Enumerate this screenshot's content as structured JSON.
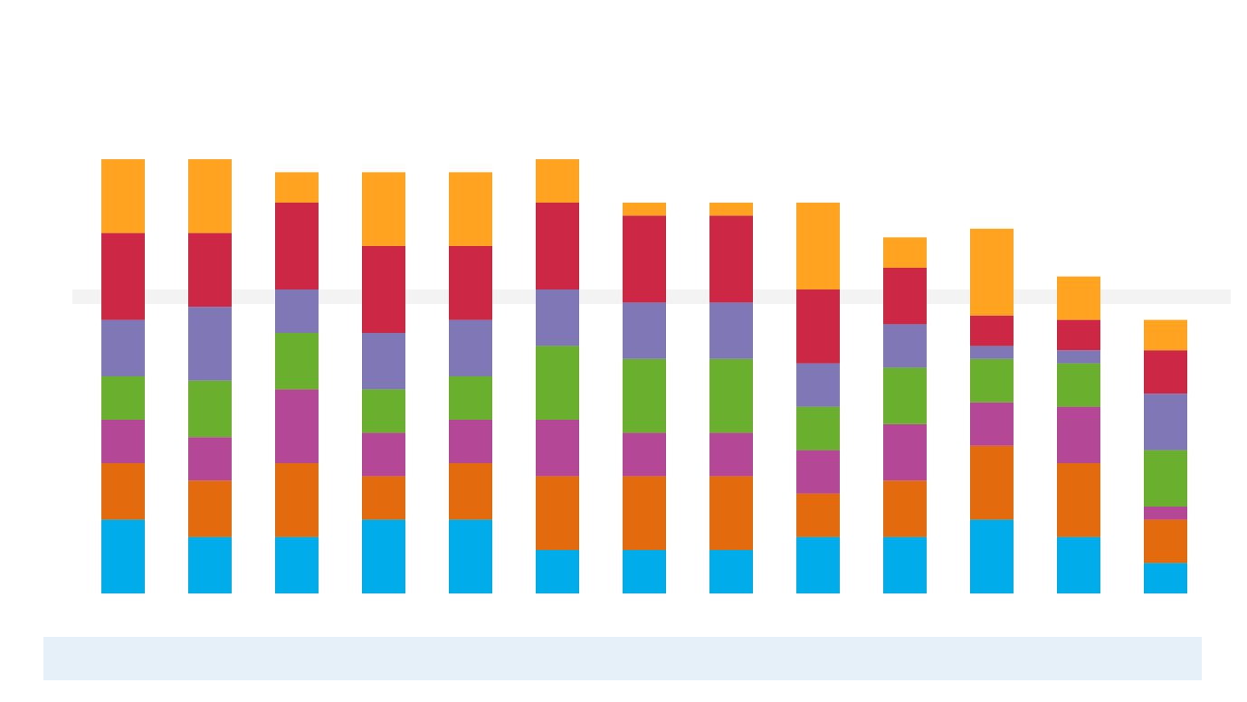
{
  "chart_data": {
    "type": "bar",
    "stacked": true,
    "title": "",
    "xlabel": "",
    "ylabel": "",
    "ylim": [
      0,
      100
    ],
    "categories": [
      "",
      "",
      "",
      "",
      "",
      "",
      "",
      "",
      "",
      "",
      "",
      "",
      ""
    ],
    "series": [
      {
        "color": "#00adea",
        "values": [
          17,
          13,
          13,
          17,
          17,
          10,
          10,
          10,
          13,
          13,
          17,
          13,
          7
        ]
      },
      {
        "color": "#e36b0d",
        "values": [
          13,
          13,
          17,
          10,
          13,
          17,
          17,
          17,
          10,
          13,
          17,
          17,
          10
        ]
      },
      {
        "color": "#b44896",
        "values": [
          10,
          10,
          17,
          10,
          10,
          13,
          10,
          10,
          10,
          13,
          10,
          13,
          3
        ]
      },
      {
        "color": "#6aaf2e",
        "values": [
          10,
          13,
          13,
          10,
          10,
          17,
          17,
          17,
          10,
          13,
          10,
          10,
          13
        ]
      },
      {
        "color": "#7f77b6",
        "values": [
          13,
          17,
          10,
          13,
          13,
          13,
          13,
          13,
          10,
          10,
          3,
          3,
          13
        ]
      },
      {
        "color": "#cc2846",
        "values": [
          20,
          17,
          20,
          20,
          17,
          20,
          20,
          20,
          17,
          13,
          7,
          7,
          10
        ]
      },
      {
        "color": "#ffa320",
        "values": [
          17,
          17,
          7,
          17,
          17,
          10,
          3,
          3,
          20,
          7,
          20,
          10,
          7
        ]
      }
    ]
  }
}
